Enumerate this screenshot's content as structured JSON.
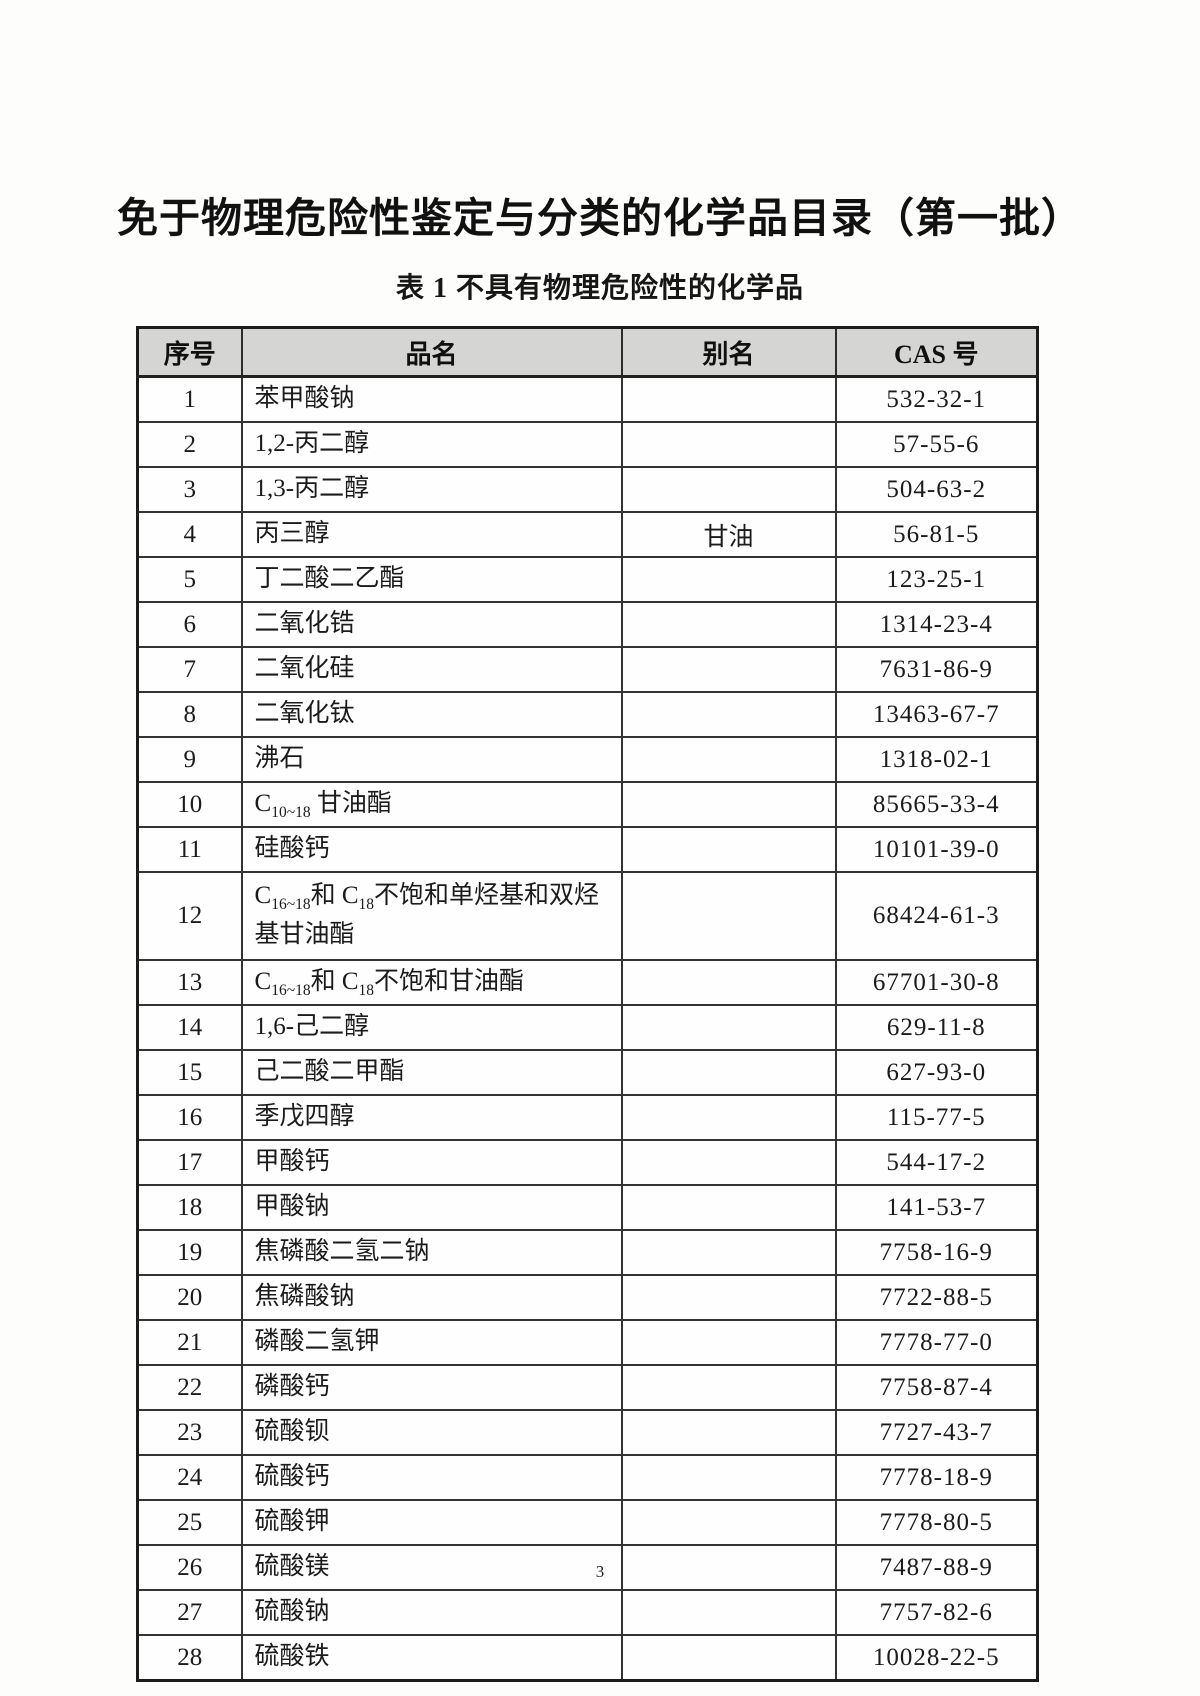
{
  "page": {
    "title": "免于物理危险性鉴定与分类的化学品目录（第一批）",
    "subtitle": "表 1  不具有物理危险性的化学品",
    "page_number": "3"
  },
  "table": {
    "headers": [
      "序号",
      "品名",
      "别名",
      "CAS 号"
    ],
    "rows": [
      {
        "no": "1",
        "name": "苯甲酸钠",
        "alias": "",
        "cas": "532-32-1"
      },
      {
        "no": "2",
        "name": "1,2-丙二醇",
        "alias": "",
        "cas": "57-55-6"
      },
      {
        "no": "3",
        "name": "1,3-丙二醇",
        "alias": "",
        "cas": "504-63-2"
      },
      {
        "no": "4",
        "name": "丙三醇",
        "alias": "甘油",
        "cas": "56-81-5"
      },
      {
        "no": "5",
        "name": "丁二酸二乙酯",
        "alias": "",
        "cas": "123-25-1"
      },
      {
        "no": "6",
        "name": "二氧化锆",
        "alias": "",
        "cas": "1314-23-4"
      },
      {
        "no": "7",
        "name": "二氧化硅",
        "alias": "",
        "cas": "7631-86-9"
      },
      {
        "no": "8",
        "name": "二氧化钛",
        "alias": "",
        "cas": "13463-67-7"
      },
      {
        "no": "9",
        "name": "沸石",
        "alias": "",
        "cas": "1318-02-1"
      },
      {
        "no": "10",
        "name_segments": [
          {
            "t": "C"
          },
          {
            "sub": "10~18"
          },
          {
            "t": " 甘油酯"
          }
        ],
        "alias": "",
        "cas": "85665-33-4"
      },
      {
        "no": "11",
        "name": "硅酸钙",
        "alias": "",
        "cas": "10101-39-0"
      },
      {
        "no": "12",
        "name_segments": [
          {
            "t": "C"
          },
          {
            "sub": "16~18"
          },
          {
            "t": "和 C"
          },
          {
            "sub": "18"
          },
          {
            "t": "不饱和单烃基和双烃基甘油酯"
          }
        ],
        "alias": "",
        "cas": "68424-61-3",
        "tall": true
      },
      {
        "no": "13",
        "name_segments": [
          {
            "t": "C"
          },
          {
            "sub": "16~18"
          },
          {
            "t": "和 C"
          },
          {
            "sub": "18"
          },
          {
            "t": "不饱和甘油酯"
          }
        ],
        "alias": "",
        "cas": "67701-30-8"
      },
      {
        "no": "14",
        "name": "1,6-己二醇",
        "alias": "",
        "cas": "629-11-8"
      },
      {
        "no": "15",
        "name": "己二酸二甲酯",
        "alias": "",
        "cas": "627-93-0"
      },
      {
        "no": "16",
        "name": "季戊四醇",
        "alias": "",
        "cas": "115-77-5"
      },
      {
        "no": "17",
        "name": "甲酸钙",
        "alias": "",
        "cas": "544-17-2"
      },
      {
        "no": "18",
        "name": "甲酸钠",
        "alias": "",
        "cas": "141-53-7"
      },
      {
        "no": "19",
        "name": "焦磷酸二氢二钠",
        "alias": "",
        "cas": "7758-16-9"
      },
      {
        "no": "20",
        "name": "焦磷酸钠",
        "alias": "",
        "cas": "7722-88-5"
      },
      {
        "no": "21",
        "name": "磷酸二氢钾",
        "alias": "",
        "cas": "7778-77-0"
      },
      {
        "no": "22",
        "name": "磷酸钙",
        "alias": "",
        "cas": "7758-87-4"
      },
      {
        "no": "23",
        "name": "硫酸钡",
        "alias": "",
        "cas": "7727-43-7"
      },
      {
        "no": "24",
        "name": "硫酸钙",
        "alias": "",
        "cas": "7778-18-9"
      },
      {
        "no": "25",
        "name": "硫酸钾",
        "alias": "",
        "cas": "7778-80-5"
      },
      {
        "no": "26",
        "name": "硫酸镁",
        "alias": "",
        "cas": "7487-88-9"
      },
      {
        "no": "27",
        "name": "硫酸钠",
        "alias": "",
        "cas": "7757-82-6"
      },
      {
        "no": "28",
        "name": "硫酸铁",
        "alias": "",
        "cas": "10028-22-5"
      }
    ]
  }
}
